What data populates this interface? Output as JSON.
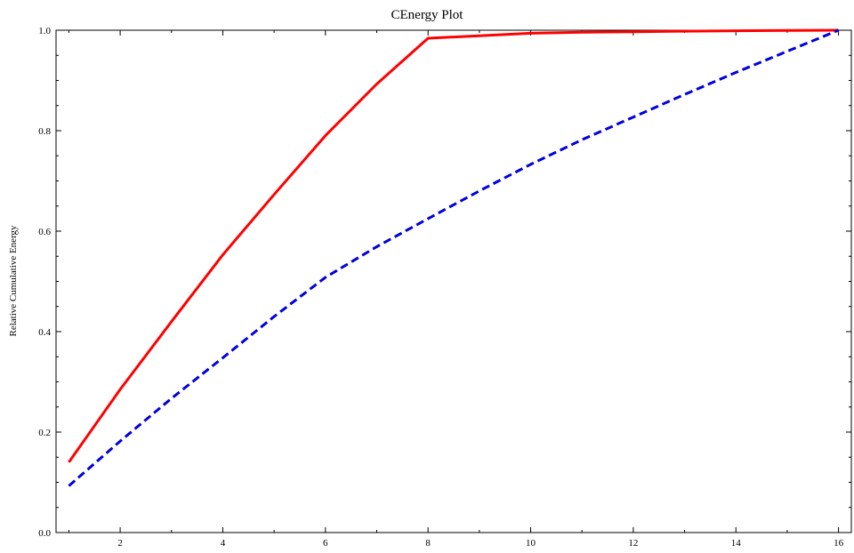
{
  "chart_data": {
    "type": "line",
    "title": "CEnergy Plot",
    "xlabel": "",
    "ylabel": "Relative Cumulative Energy",
    "xlim": [
      0.75,
      16.25
    ],
    "ylim": [
      0.0,
      1.0
    ],
    "x_ticks": [
      2,
      4,
      6,
      8,
      10,
      12,
      14,
      16
    ],
    "y_ticks": [
      0.0,
      0.2,
      0.4,
      0.6,
      0.8,
      1.0
    ],
    "x_tick_labels": [
      "2",
      "4",
      "6",
      "8",
      "10",
      "12",
      "14",
      "16"
    ],
    "y_tick_labels": [
      "0.0",
      "0.2",
      "0.4",
      "0.6",
      "0.8",
      "1.0"
    ],
    "grid": false,
    "x": [
      1,
      2,
      3,
      4,
      5,
      6,
      7,
      8,
      9,
      10,
      11,
      12,
      13,
      14,
      15,
      16
    ],
    "series": [
      {
        "color": "#ff0000",
        "style": "solid",
        "values": [
          0.14,
          0.285,
          0.42,
          0.553,
          0.673,
          0.79,
          0.893,
          0.984,
          0.989,
          0.994,
          0.996,
          0.997,
          0.998,
          0.999,
          0.9995,
          1.0
        ]
      },
      {
        "color": "#0000dd",
        "style": "dashed",
        "values": [
          0.093,
          0.182,
          0.267,
          0.348,
          0.43,
          0.508,
          0.569,
          0.625,
          0.68,
          0.733,
          0.782,
          0.827,
          0.872,
          0.916,
          0.958,
          1.0
        ]
      }
    ]
  }
}
